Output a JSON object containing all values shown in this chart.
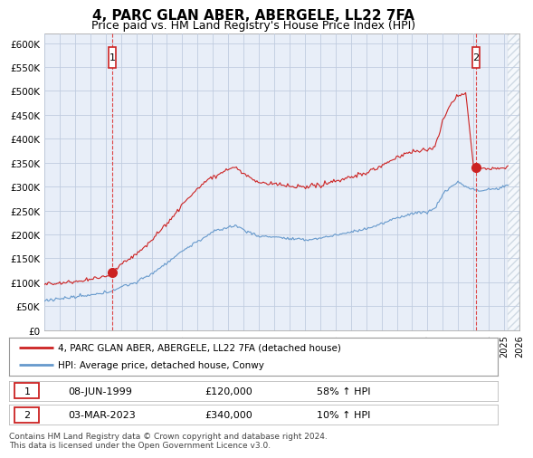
{
  "title": "4, PARC GLAN ABER, ABERGELE, LL22 7FA",
  "subtitle": "Price paid vs. HM Land Registry's House Price Index (HPI)",
  "ylim": [
    0,
    620000
  ],
  "yticks": [
    0,
    50000,
    100000,
    150000,
    200000,
    250000,
    300000,
    350000,
    400000,
    450000,
    500000,
    550000,
    600000
  ],
  "ytick_labels": [
    "£0",
    "£50K",
    "£100K",
    "£150K",
    "£200K",
    "£250K",
    "£300K",
    "£350K",
    "£400K",
    "£450K",
    "£500K",
    "£550K",
    "£600K"
  ],
  "xlim": [
    1995,
    2026
  ],
  "xticks": [
    1995,
    1996,
    1997,
    1998,
    1999,
    2000,
    2001,
    2002,
    2003,
    2004,
    2005,
    2006,
    2007,
    2008,
    2009,
    2010,
    2011,
    2012,
    2013,
    2014,
    2015,
    2016,
    2017,
    2018,
    2019,
    2020,
    2021,
    2022,
    2023,
    2024,
    2025,
    2026
  ],
  "background_color": "#ffffff",
  "plot_bg_color": "#e8eef8",
  "grid_color": "#c0cce0",
  "hpi_color": "#6699cc",
  "price_color": "#cc2222",
  "ann1_x": 1999.44,
  "ann1_y_dot": 120000,
  "ann1_label": "1",
  "ann2_x": 2023.17,
  "ann2_y_dot": 340000,
  "ann2_label": "2",
  "vline_color": "#dd4444",
  "box_edge_color": "#cc2222",
  "legend_line1": "4, PARC GLAN ABER, ABERGELE, LL22 7FA (detached house)",
  "legend_line2": "HPI: Average price, detached house, Conwy",
  "table_row1": [
    "1",
    "08-JUN-1999",
    "£120,000",
    "58% ↑ HPI"
  ],
  "table_row2": [
    "2",
    "03-MAR-2023",
    "£340,000",
    "10% ↑ HPI"
  ],
  "footnote": "Contains HM Land Registry data © Crown copyright and database right 2024.\nThis data is licensed under the Open Government Licence v3.0.",
  "title_fontsize": 11,
  "subtitle_fontsize": 9
}
